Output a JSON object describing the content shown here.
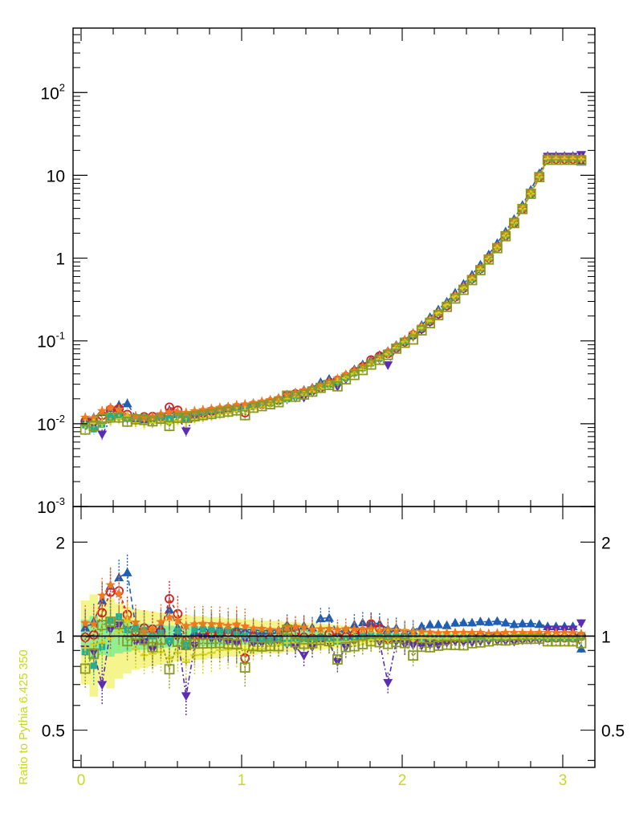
{
  "chart_data": [
    {
      "panel": "main",
      "type": "scatter",
      "yscale": "log",
      "xlim": [
        -0.05,
        3.2
      ],
      "ylim": [
        0.001,
        600
      ],
      "ytick_labels": [
        {
          "base": "10",
          "exp": "-3",
          "value": 0.001
        },
        {
          "base": "10",
          "exp": "-2",
          "value": 0.01
        },
        {
          "base": "10",
          "exp": "-1",
          "value": 0.1
        },
        {
          "base": "1",
          "exp": "",
          "value": 1
        },
        {
          "base": "10",
          "exp": "",
          "value": 10
        },
        {
          "base": "10",
          "exp": "2",
          "value": 100
        }
      ],
      "x": [
        0.026,
        0.079,
        0.131,
        0.183,
        0.236,
        0.288,
        0.34,
        0.393,
        0.445,
        0.497,
        0.55,
        0.602,
        0.654,
        0.707,
        0.759,
        0.812,
        0.864,
        0.916,
        0.969,
        1.021,
        1.073,
        1.126,
        1.178,
        1.23,
        1.283,
        1.335,
        1.388,
        1.44,
        1.492,
        1.545,
        1.597,
        1.649,
        1.702,
        1.754,
        1.806,
        1.859,
        1.911,
        1.963,
        2.016,
        2.068,
        2.121,
        2.173,
        2.225,
        2.278,
        2.33,
        2.382,
        2.435,
        2.487,
        2.539,
        2.592,
        2.644,
        2.697,
        2.749,
        2.801,
        2.854,
        2.906,
        2.958,
        3.011,
        3.063,
        3.115
      ],
      "reference": [
        0.0108,
        0.0107,
        0.0106,
        0.0107,
        0.0109,
        0.011,
        0.0112,
        0.0114,
        0.0116,
        0.0118,
        0.012,
        0.0123,
        0.0126,
        0.013,
        0.0134,
        0.0138,
        0.0143,
        0.0148,
        0.0154,
        0.016,
        0.0168,
        0.0176,
        0.0185,
        0.0196,
        0.0208,
        0.0222,
        0.0238,
        0.0257,
        0.0279,
        0.0305,
        0.0336,
        0.0373,
        0.0418,
        0.0472,
        0.0538,
        0.0618,
        0.0718,
        0.0843,
        0.1,
        0.12,
        0.145,
        0.178,
        0.22,
        0.275,
        0.347,
        0.443,
        0.572,
        0.75,
        1.0,
        1.36,
        1.9,
        2.72,
        4.0,
        6.1,
        9.7,
        16.0,
        16.0,
        16.0,
        16.0,
        16.0
      ],
      "series": [
        {
          "color": "#1e5fb4",
          "marker": "triangle-up",
          "dash": "6,4",
          "y": [
            0.0115,
            0.0119,
            0.0138,
            0.0155,
            0.0168,
            0.0176,
            0.012,
            0.011,
            0.0119,
            0.0126,
            0.0146,
            0.0131,
            0.0117,
            0.0134,
            0.0144,
            0.0147,
            0.0152,
            0.0155,
            0.0163,
            0.0168,
            0.0176,
            0.0183,
            0.0193,
            0.0205,
            0.0226,
            0.0238,
            0.0257,
            0.0274,
            0.0318,
            0.0349,
            0.0345,
            0.0393,
            0.0455,
            0.0522,
            0.0593,
            0.0678,
            0.0757,
            0.0895,
            0.103,
            0.125,
            0.156,
            0.194,
            0.24,
            0.298,
            0.383,
            0.49,
            0.632,
            0.836,
            1.11,
            1.52,
            2.1,
            2.97,
            4.39,
            6.7,
            10.6,
            17.2,
            17.2,
            17.2,
            17.2,
            14.6
          ]
        },
        {
          "color": "#d42020",
          "marker": "circle-open",
          "dash": "4,3",
          "y": [
            0.0107,
            0.0108,
            0.0126,
            0.0148,
            0.0152,
            0.0129,
            0.0116,
            0.0121,
            0.0122,
            0.0122,
            0.0158,
            0.0145,
            0.0122,
            0.0125,
            0.0135,
            0.0142,
            0.0146,
            0.0152,
            0.0157,
            0.0136,
            0.0167,
            0.0172,
            0.0182,
            0.0192,
            0.0221,
            0.0229,
            0.0236,
            0.0253,
            0.0275,
            0.031,
            0.0334,
            0.0371,
            0.0424,
            0.0488,
            0.0588,
            0.0655,
            0.0706,
            0.0826,
            0.098,
            0.118,
            0.141,
            0.173,
            0.212,
            0.267,
            0.341,
            0.434,
            0.567,
            0.746,
            0.993,
            1.36,
            1.88,
            2.67,
            3.95,
            6.04,
            9.62,
            15.8,
            15.8,
            15.8,
            15.8,
            16.0
          ]
        },
        {
          "color": "#5a2db4",
          "marker": "triangle-down",
          "dash": "6,3,2,3",
          "y": [
            0.0098,
            0.0095,
            0.0074,
            0.0112,
            0.0118,
            0.0115,
            0.0107,
            0.0109,
            0.0105,
            0.0121,
            0.0114,
            0.0122,
            0.0081,
            0.0121,
            0.0133,
            0.0135,
            0.014,
            0.0142,
            0.0146,
            0.0156,
            0.0159,
            0.0167,
            0.0176,
            0.0188,
            0.0196,
            0.0205,
            0.0206,
            0.0237,
            0.0271,
            0.029,
            0.0278,
            0.0343,
            0.0402,
            0.0465,
            0.0527,
            0.0592,
            0.0509,
            0.0809,
            0.094,
            0.112,
            0.135,
            0.167,
            0.205,
            0.262,
            0.333,
            0.423,
            0.545,
            0.721,
            0.964,
            1.31,
            1.83,
            2.61,
            3.88,
            5.93,
            9.4,
            16.8,
            16.8,
            16.8,
            16.8,
            17.6
          ]
        },
        {
          "color": "#18b0a0",
          "marker": "square",
          "dash": "4,4",
          "y": [
            0.0096,
            0.0086,
            0.0098,
            0.012,
            0.0126,
            0.0115,
            0.0118,
            0.0119,
            0.0116,
            0.0121,
            0.0116,
            0.0128,
            0.0118,
            0.0137,
            0.0141,
            0.0145,
            0.0148,
            0.0155,
            0.0156,
            0.0161,
            0.0166,
            0.0172,
            0.0179,
            0.0192,
            0.0198,
            0.0215,
            0.0233,
            0.0253,
            0.0276,
            0.0298,
            0.0323,
            0.0363,
            0.0412,
            0.0471,
            0.0538,
            0.0616,
            0.0722,
            0.0838,
            0.099,
            0.119,
            0.143,
            0.176,
            0.217,
            0.272,
            0.343,
            0.438,
            0.566,
            0.743,
            0.991,
            1.35,
            1.88,
            2.7,
            3.96,
            6.05,
            9.61,
            15.8,
            15.8,
            15.8,
            15.8,
            15.9
          ]
        },
        {
          "color": "#f07820",
          "marker": "star",
          "dash": "3,3",
          "y": [
            0.0119,
            0.0117,
            0.0143,
            0.0156,
            0.0149,
            0.0125,
            0.0124,
            0.0118,
            0.0122,
            0.0131,
            0.0138,
            0.0138,
            0.0136,
            0.0142,
            0.0147,
            0.0151,
            0.0156,
            0.016,
            0.0168,
            0.0172,
            0.0178,
            0.0186,
            0.0194,
            0.0205,
            0.0222,
            0.0238,
            0.0254,
            0.027,
            0.0294,
            0.0322,
            0.0352,
            0.0393,
            0.0439,
            0.0496,
            0.0567,
            0.0646,
            0.0752,
            0.0881,
            0.104,
            0.124,
            0.15,
            0.183,
            0.225,
            0.282,
            0.356,
            0.455,
            0.587,
            0.77,
            1.02,
            1.39,
            1.95,
            2.79,
            4.1,
            6.25,
            9.96,
            16.4,
            16.4,
            16.4,
            16.4,
            16.3
          ]
        },
        {
          "color": "#d4d21e",
          "marker": "plus",
          "dash": "2,3",
          "y": [
            0.0099,
            0.0101,
            0.0101,
            0.0106,
            0.0113,
            0.0123,
            0.0102,
            0.0099,
            0.0102,
            0.0105,
            0.0102,
            0.0109,
            0.0104,
            0.0113,
            0.0117,
            0.0122,
            0.0129,
            0.0134,
            0.0141,
            0.0145,
            0.0152,
            0.016,
            0.0172,
            0.0184,
            0.0198,
            0.0212,
            0.0224,
            0.0244,
            0.0265,
            0.0292,
            0.0322,
            0.0358,
            0.0402,
            0.0455,
            0.0523,
            0.0603,
            0.0699,
            0.0826,
            0.098,
            0.118,
            0.143,
            0.175,
            0.216,
            0.27,
            0.341,
            0.435,
            0.562,
            0.738,
            0.984,
            1.34,
            1.87,
            2.68,
            3.94,
            6.01,
            9.56,
            15.8,
            15.8,
            15.8,
            15.8,
            15.7
          ]
        },
        {
          "color": "#8a9a20",
          "marker": "square-open",
          "dash": "3,2",
          "y": [
            0.0085,
            0.0094,
            0.0115,
            0.0119,
            0.0119,
            0.0106,
            0.0113,
            0.0111,
            0.0107,
            0.0115,
            0.0094,
            0.0118,
            0.0118,
            0.0123,
            0.0127,
            0.0131,
            0.0136,
            0.014,
            0.0145,
            0.0127,
            0.0156,
            0.0163,
            0.0172,
            0.0182,
            0.0218,
            0.0212,
            0.0225,
            0.0244,
            0.0271,
            0.0294,
            0.0283,
            0.0344,
            0.0388,
            0.0445,
            0.0518,
            0.0591,
            0.0678,
            0.0807,
            0.095,
            0.104,
            0.134,
            0.164,
            0.205,
            0.258,
            0.325,
            0.414,
            0.543,
            0.716,
            0.962,
            1.32,
            1.84,
            2.65,
            3.92,
            5.98,
            9.52,
            15.4,
            15.4,
            15.4,
            15.4,
            15.2
          ]
        }
      ]
    },
    {
      "panel": "ratio",
      "type": "scatter",
      "ylabel": "Ratio to Pythia 6.425 350",
      "ylim": [
        0.38,
        2.6
      ],
      "yscale": "log",
      "xlim": [
        -0.05,
        3.2
      ],
      "xtick_labels": [
        "0",
        "1",
        "2",
        "3"
      ],
      "ytick_labels": [
        "0.5",
        "1",
        "2"
      ],
      "ytick_values": [
        0.5,
        1,
        2
      ],
      "band_outer": [
        0.3,
        0.36,
        0.29,
        0.32,
        0.27,
        0.24,
        0.22,
        0.21,
        0.2,
        0.19,
        0.18,
        0.17,
        0.17,
        0.16,
        0.16,
        0.15,
        0.15,
        0.14,
        0.14,
        0.13,
        0.13,
        0.12,
        0.12,
        0.12,
        0.11,
        0.11,
        0.1,
        0.1,
        0.095,
        0.09,
        0.085,
        0.08,
        0.075,
        0.07,
        0.065,
        0.06,
        0.055,
        0.05,
        0.048,
        0.046,
        0.044,
        0.042,
        0.04,
        0.038,
        0.036,
        0.034,
        0.032,
        0.03,
        0.029,
        0.028,
        0.027,
        0.026,
        0.025,
        0.024,
        0.023,
        0.022,
        0.021,
        0.02,
        0.019,
        0.018
      ],
      "band_inner": [
        0.13,
        0.16,
        0.13,
        0.14,
        0.12,
        0.11,
        0.1,
        0.095,
        0.09,
        0.085,
        0.08,
        0.078,
        0.076,
        0.074,
        0.072,
        0.07,
        0.068,
        0.066,
        0.064,
        0.062,
        0.06,
        0.058,
        0.056,
        0.054,
        0.052,
        0.05,
        0.048,
        0.046,
        0.044,
        0.042,
        0.04,
        0.038,
        0.036,
        0.034,
        0.032,
        0.03,
        0.028,
        0.026,
        0.025,
        0.024,
        0.023,
        0.022,
        0.021,
        0.02,
        0.019,
        0.018,
        0.017,
        0.016,
        0.015,
        0.014,
        0.013,
        0.012,
        0.012,
        0.011,
        0.011,
        0.01,
        0.01,
        0.01,
        0.01,
        0.01
      ],
      "reference_line": 1
    }
  ],
  "colors": {
    "band_outer": "#f6f48c",
    "band_inner": "#8ef092",
    "axis_label_accent": "#c8d81e"
  }
}
